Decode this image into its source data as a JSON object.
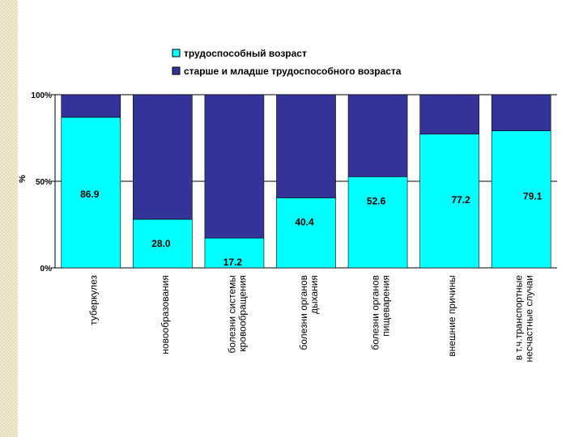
{
  "colors": {
    "working_age": "#00ffff",
    "non_working_age": "#333399",
    "gridline": "#000000"
  },
  "chart_data": {
    "type": "bar",
    "stacked": true,
    "percent": true,
    "title": "",
    "ylabel": "%",
    "xlabel": "",
    "ylim": [
      0,
      100
    ],
    "yticks": [
      0,
      50,
      100
    ],
    "ytick_labels": [
      "0%",
      "50%",
      "100%"
    ],
    "legend_position": "top",
    "categories": [
      [
        "туберкулез"
      ],
      [
        "новообразования"
      ],
      [
        "болезни системы",
        "кровообращения"
      ],
      [
        "болезни органов",
        "дыхания"
      ],
      [
        "болезни органов",
        "пищеварения"
      ],
      [
        "внешние причины"
      ],
      [
        "в т.ч.транспортные",
        "несчастные случаи"
      ]
    ],
    "series": [
      {
        "name": "трудоспособный возраст",
        "values": [
          86.9,
          28.0,
          17.2,
          40.4,
          52.6,
          77.2,
          79.1
        ]
      },
      {
        "name": "старше и младше трудоспособного возраста",
        "values": [
          13.1,
          72.0,
          82.8,
          59.6,
          47.4,
          22.8,
          20.9
        ]
      }
    ],
    "data_labels": [
      "86.9",
      "28.0",
      "17.2",
      "40.4",
      "52.6",
      "77.2",
      "79.1"
    ]
  }
}
